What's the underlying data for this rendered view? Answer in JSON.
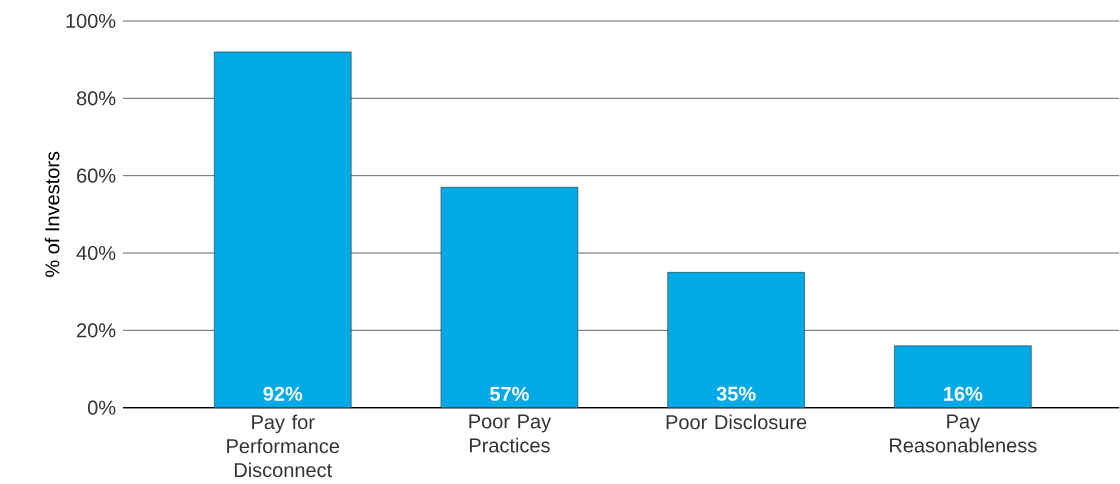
{
  "chart_data": {
    "type": "bar",
    "ylabel": "% of Investors",
    "categories": [
      "Pay for Performance Disconnect",
      "Poor Pay Practices",
      "Poor Disclosure",
      "Pay Reasonableness"
    ],
    "values": [
      92,
      57,
      35,
      16
    ],
    "value_labels": [
      "92%",
      "57%",
      "35%",
      "16%"
    ],
    "color": "#00aae7",
    "ylim": [
      0,
      100
    ],
    "yticks": [
      {
        "value": 0,
        "label": "0%"
      },
      {
        "value": 20,
        "label": "20%"
      },
      {
        "value": 40,
        "label": "40%"
      },
      {
        "value": 60,
        "label": "60%"
      },
      {
        "value": 80,
        "label": "80%"
      },
      {
        "value": 100,
        "label": "100%"
      }
    ],
    "grid": "y"
  }
}
